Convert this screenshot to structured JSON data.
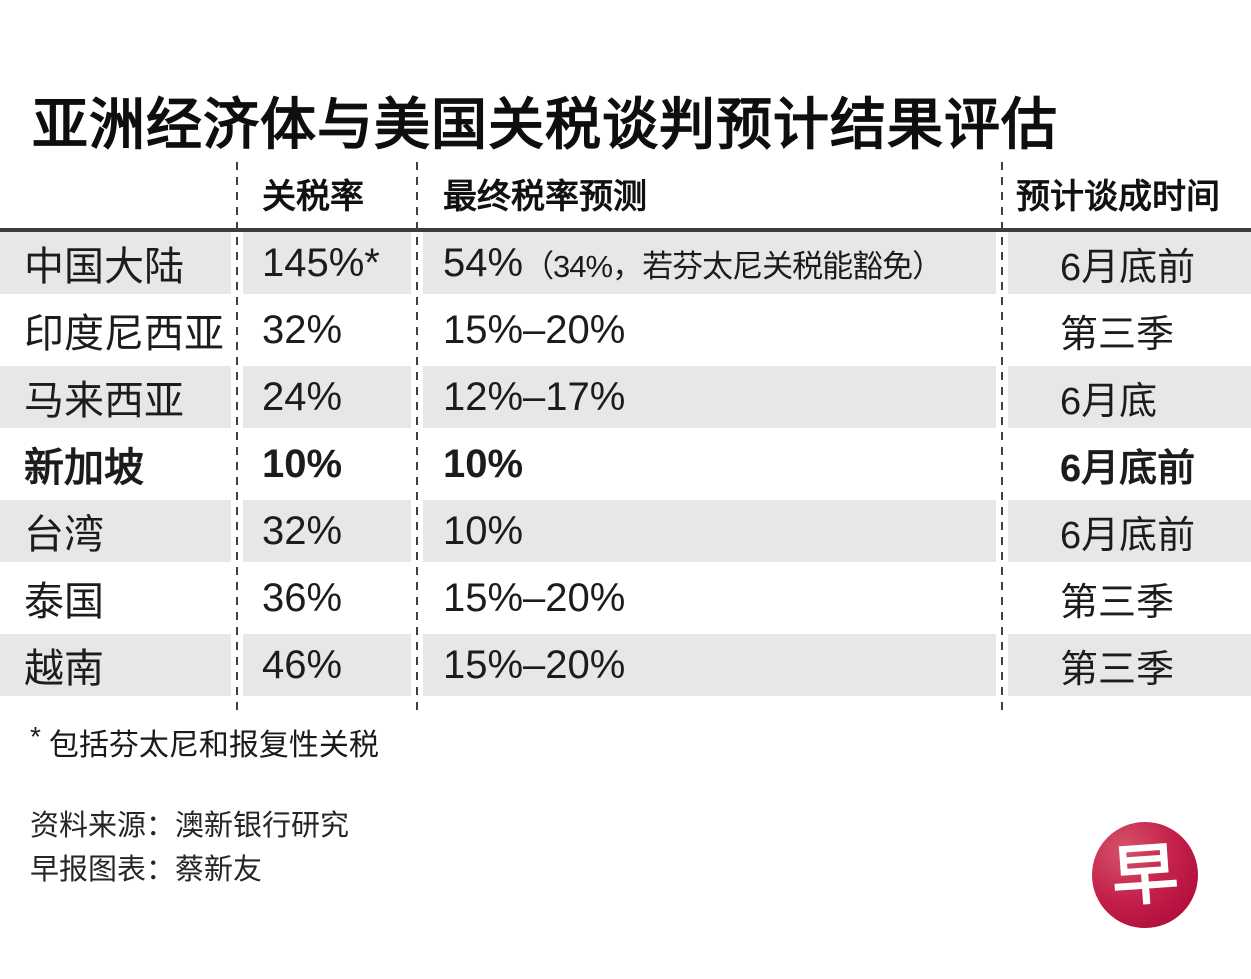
{
  "chart_data": {
    "type": "table",
    "title": "亚洲经济体与美国关税谈判预计结果评估",
    "columns": [
      "",
      "关税率",
      "最终税率预测",
      "预计谈成时间"
    ],
    "rows": [
      {
        "economy": "中国大陆",
        "tariff": "145%*",
        "prediction": "54%",
        "prediction_note": "（34%，若芬太尼关税能豁免）",
        "timing": "6月底前",
        "highlight": false
      },
      {
        "economy": "印度尼西亚",
        "tariff": "32%",
        "prediction": "15%–20%",
        "timing": "第三季",
        "highlight": false
      },
      {
        "economy": "马来西亚",
        "tariff": "24%",
        "prediction": "12%–17%",
        "timing": "6月底",
        "highlight": false
      },
      {
        "economy": "新加坡",
        "tariff": "10%",
        "prediction": "10%",
        "timing": "6月底前",
        "highlight": true
      },
      {
        "economy": "台湾",
        "tariff": "32%",
        "prediction": "10%",
        "timing": "6月底前",
        "highlight": false
      },
      {
        "economy": "泰国",
        "tariff": "36%",
        "prediction": "15%–20%",
        "timing": "第三季",
        "highlight": false
      },
      {
        "economy": "越南",
        "tariff": "46%",
        "prediction": "15%–20%",
        "timing": "第三季",
        "highlight": false
      }
    ],
    "layout": {
      "row_stripe_color": "#e7e7e7",
      "separator_style": "dashed-vertical",
      "grid": "off"
    }
  },
  "footnote": {
    "marker": "*",
    "text": "包括芬太尼和报复性关税"
  },
  "credits": {
    "source": "资料来源：澳新银行研究",
    "chart": "早报图表：蔡新友"
  },
  "logo": {
    "glyph": "早",
    "color": "#c11541"
  }
}
